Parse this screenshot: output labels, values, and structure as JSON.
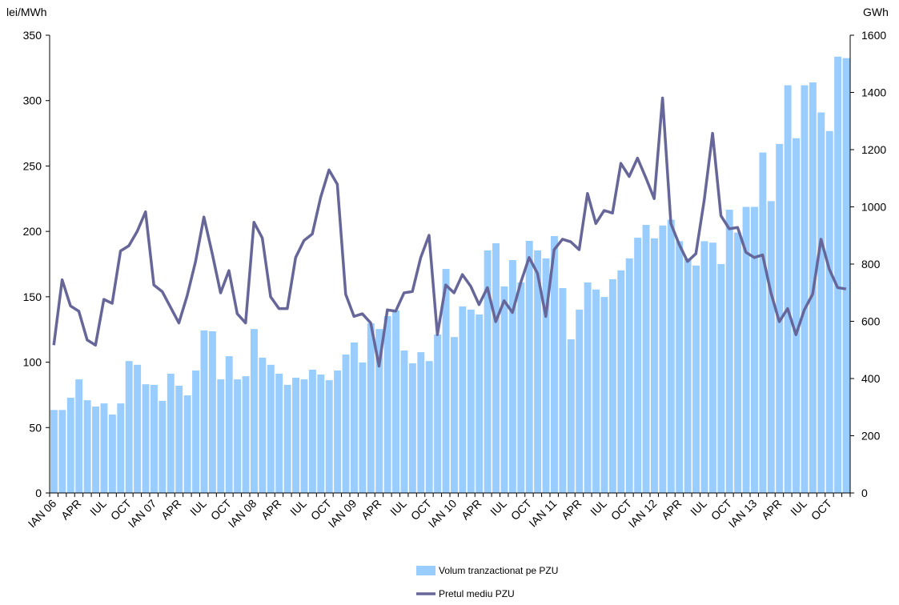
{
  "chart_data": {
    "type": "bar_line",
    "y_label": "lei/MWh",
    "y2_label": "GWh",
    "categories": [
      "IAN 06",
      null,
      null,
      "APR",
      null,
      null,
      "IUL",
      null,
      null,
      "OCT",
      null,
      null,
      "IAN 07",
      null,
      null,
      "APR",
      null,
      null,
      "IUL",
      null,
      null,
      "OCT",
      null,
      null,
      "IAN 08",
      null,
      null,
      "APR",
      null,
      null,
      "IUL",
      null,
      null,
      "OCT",
      null,
      null,
      "IAN 09",
      null,
      null,
      "APR",
      null,
      null,
      "IUL",
      null,
      null,
      "OCT",
      null,
      null,
      "IAN 10",
      null,
      null,
      "APR",
      null,
      null,
      "IUL",
      null,
      null,
      "OCT",
      null,
      null,
      "IAN 11",
      null,
      null,
      "APR",
      null,
      null,
      "IUL",
      null,
      null,
      "OCT",
      null,
      null,
      "IAN 12",
      null,
      null,
      "APR",
      null,
      null,
      "IUL",
      null,
      null,
      "OCT",
      null,
      null,
      "IAN 13",
      null,
      null,
      "APR",
      null,
      null,
      "IUL",
      null,
      null,
      "OCT",
      null,
      null
    ],
    "series": [
      {
        "name": "Volum tranzactionat pe PZU",
        "type": "bar",
        "axis": "y2",
        "color": "#99ccff",
        "values": [
          290,
          290,
          333,
          397,
          324,
          302,
          313,
          274,
          313,
          461,
          448,
          380,
          378,
          322,
          417,
          375,
          341,
          428,
          568,
          565,
          397,
          478,
          397,
          408,
          573,
          473,
          448,
          417,
          378,
          403,
          397,
          431,
          414,
          394,
          428,
          484,
          526,
          456,
          593,
          573,
          618,
          638,
          498,
          453,
          492,
          461,
          554,
          783,
          545,
          652,
          641,
          624,
          848,
          873,
          722,
          814,
          736,
          881,
          848,
          820,
          898,
          716,
          537,
          641,
          736,
          711,
          685,
          747,
          778,
          820,
          892,
          937,
          890,
          935,
          955,
          880,
          820,
          795,
          880,
          875,
          800,
          990,
          910,
          1000,
          1000,
          1190,
          1020,
          1220,
          1425,
          1240,
          1425,
          1435,
          1330,
          1265,
          1525,
          1520
        ]
      },
      {
        "name": "Pretul mediu PZU",
        "type": "line",
        "axis": "y",
        "color": "#666699",
        "values": [
          113,
          163,
          143,
          139,
          117,
          113,
          148,
          145,
          185,
          189,
          200,
          215,
          159,
          154,
          142,
          130,
          151,
          177,
          211,
          183,
          153,
          170,
          137,
          130,
          207,
          195,
          150,
          141,
          141,
          180,
          193,
          198,
          226,
          247,
          236,
          152,
          135,
          137,
          130,
          97,
          140,
          139,
          153,
          154,
          180,
          197,
          121,
          159,
          153,
          167,
          158,
          144,
          157,
          131,
          147,
          138,
          161,
          180,
          168,
          135,
          186,
          194,
          192,
          186,
          229,
          206,
          216,
          214,
          252,
          242,
          256,
          241,
          225,
          302,
          206,
          190,
          177,
          183,
          224,
          275,
          212,
          202,
          203,
          184,
          180,
          182,
          153,
          131,
          141,
          121,
          140,
          152,
          194,
          171,
          157,
          156
        ]
      }
    ],
    "ylim": [
      0,
      350
    ],
    "yticks": [
      0,
      50,
      100,
      150,
      200,
      250,
      300,
      350
    ],
    "y2lim": [
      0,
      1600
    ],
    "y2ticks": [
      0,
      200,
      400,
      600,
      800,
      1000,
      1200,
      1400,
      1600
    ]
  }
}
